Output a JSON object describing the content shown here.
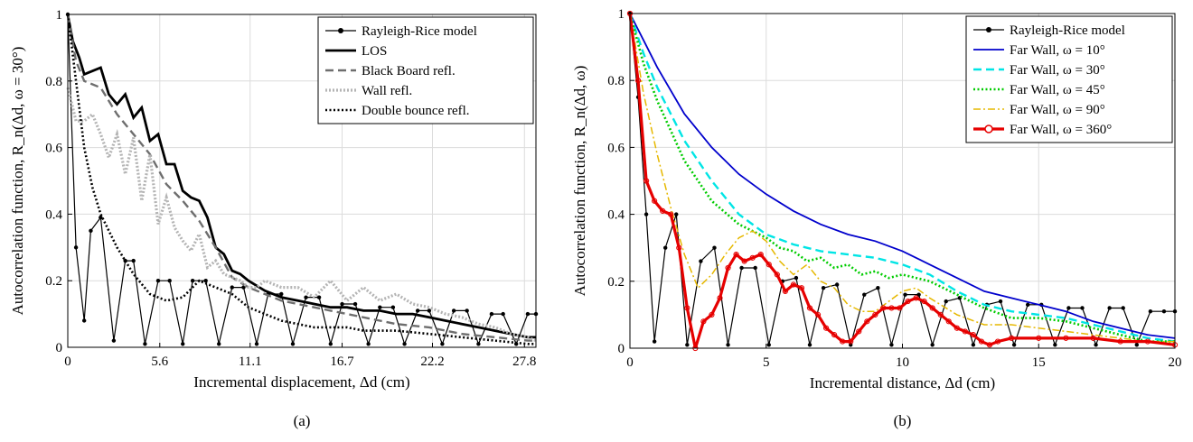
{
  "chart_data": [
    {
      "panel_label": "(a)",
      "type": "line",
      "xlabel": "Incremental displacement, Δd (cm)",
      "ylabel": "Autocorrelation function, R_n(Δd, ω = 30°)",
      "xlim": [
        0,
        28.5
      ],
      "ylim": [
        0,
        1
      ],
      "xticks": [
        0,
        5.6,
        11.1,
        16.7,
        22.2,
        27.8
      ],
      "xtick_labels": [
        "0",
        "5.6",
        "11.1",
        "16.7",
        "22.2",
        "27.8"
      ],
      "yticks": [
        0,
        0.2,
        0.4,
        0.6,
        0.8,
        1
      ],
      "ytick_labels": [
        "0",
        "0.2",
        "0.4",
        "0.6",
        "0.8",
        "1"
      ],
      "grid": true,
      "legend_position": "top-right",
      "series": [
        {
          "name": "Rayleigh-Rice model",
          "color": "#000000",
          "style": "solid-dot",
          "x": [
            0,
            0.5,
            1,
            1.4,
            2,
            2.8,
            3.5,
            4,
            4.7,
            5.5,
            6.2,
            7,
            7.6,
            8.4,
            9.2,
            10,
            10.7,
            11.5,
            12.2,
            13,
            13.7,
            14.5,
            15.3,
            16,
            16.7,
            17.5,
            18.3,
            19,
            19.8,
            20.5,
            21.3,
            22,
            22.8,
            23.5,
            24.3,
            25,
            25.8,
            26.5,
            27.3,
            28,
            28.5
          ],
          "y": [
            1,
            0.3,
            0.08,
            0.35,
            0.39,
            0.02,
            0.26,
            0.26,
            0.01,
            0.2,
            0.2,
            0.01,
            0.2,
            0.2,
            0.01,
            0.18,
            0.18,
            0.01,
            0.16,
            0.16,
            0.01,
            0.15,
            0.15,
            0.01,
            0.13,
            0.13,
            0.01,
            0.12,
            0.12,
            0.01,
            0.11,
            0.11,
            0.01,
            0.11,
            0.11,
            0.01,
            0.1,
            0.1,
            0.01,
            0.1,
            0.1
          ]
        },
        {
          "name": "LOS",
          "color": "#000000",
          "style": "thick-solid",
          "x": [
            0,
            0.3,
            0.7,
            1,
            1.5,
            2,
            2.5,
            3,
            3.5,
            4,
            4.5,
            5,
            5.5,
            6,
            6.5,
            7,
            7.5,
            8,
            8.5,
            9,
            9.5,
            10,
            10.5,
            11,
            12,
            13,
            14,
            15,
            16,
            17,
            18,
            19,
            20,
            21,
            22,
            23,
            24,
            25,
            26,
            27,
            28,
            28.5
          ],
          "y": [
            1,
            0.92,
            0.87,
            0.82,
            0.83,
            0.84,
            0.76,
            0.73,
            0.76,
            0.69,
            0.72,
            0.62,
            0.64,
            0.55,
            0.55,
            0.47,
            0.45,
            0.44,
            0.39,
            0.3,
            0.28,
            0.23,
            0.22,
            0.2,
            0.17,
            0.15,
            0.14,
            0.13,
            0.12,
            0.12,
            0.11,
            0.11,
            0.1,
            0.1,
            0.09,
            0.08,
            0.07,
            0.06,
            0.05,
            0.04,
            0.03,
            0.03
          ]
        },
        {
          "name": "Black Board refl.",
          "color": "#6e6e6e",
          "style": "dashed",
          "x": [
            0,
            0.5,
            1,
            2,
            3,
            4,
            5,
            6,
            7,
            8,
            9,
            10,
            11,
            12,
            13,
            14,
            15,
            16,
            17,
            18,
            19,
            20,
            22,
            24,
            26,
            28,
            28.5
          ],
          "y": [
            1,
            0.86,
            0.8,
            0.78,
            0.7,
            0.64,
            0.58,
            0.49,
            0.44,
            0.38,
            0.3,
            0.21,
            0.18,
            0.16,
            0.14,
            0.13,
            0.12,
            0.11,
            0.1,
            0.09,
            0.08,
            0.07,
            0.06,
            0.04,
            0.03,
            0.02,
            0.02
          ]
        },
        {
          "name": "Wall refl.",
          "color": "#b4b4b4",
          "style": "dotted-thick",
          "x": [
            0,
            0.5,
            1,
            1.5,
            2,
            2.5,
            3,
            3.5,
            4,
            4.5,
            5,
            5.5,
            6,
            6.5,
            7,
            7.5,
            8,
            8.5,
            9,
            9.5,
            10,
            10.5,
            11,
            11.5,
            12,
            13,
            14,
            15,
            16,
            17,
            18,
            19,
            20,
            21,
            22,
            23,
            24,
            25,
            26,
            27,
            28,
            28.5
          ],
          "y": [
            0.78,
            0.68,
            0.68,
            0.7,
            0.64,
            0.57,
            0.64,
            0.52,
            0.63,
            0.44,
            0.58,
            0.37,
            0.45,
            0.36,
            0.32,
            0.29,
            0.34,
            0.24,
            0.26,
            0.22,
            0.21,
            0.2,
            0.18,
            0.18,
            0.2,
            0.18,
            0.18,
            0.15,
            0.2,
            0.14,
            0.18,
            0.14,
            0.16,
            0.13,
            0.12,
            0.1,
            0.09,
            0.07,
            0.06,
            0.04,
            0.03,
            0.02
          ]
        },
        {
          "name": "Double bounce refl.",
          "color": "#000000",
          "style": "dotted",
          "x": [
            0,
            0.5,
            1,
            1.5,
            2,
            3,
            4,
            5,
            6,
            7,
            8,
            9,
            10,
            11,
            12,
            13,
            14,
            15,
            16,
            17,
            18,
            19,
            20,
            22,
            24,
            26,
            28,
            28.5
          ],
          "y": [
            1,
            0.8,
            0.6,
            0.48,
            0.4,
            0.3,
            0.22,
            0.16,
            0.14,
            0.15,
            0.2,
            0.18,
            0.16,
            0.12,
            0.1,
            0.08,
            0.07,
            0.06,
            0.06,
            0.06,
            0.05,
            0.05,
            0.05,
            0.04,
            0.03,
            0.02,
            0.01,
            0.01
          ]
        }
      ]
    },
    {
      "panel_label": "(b)",
      "type": "line",
      "xlabel": "Incremental distance, Δd (cm)",
      "ylabel": "Autocorrelation function, R_n(Δd, ω)",
      "xlim": [
        0,
        20
      ],
      "ylim": [
        0,
        1
      ],
      "xticks": [
        0,
        5,
        10,
        15,
        20
      ],
      "xtick_labels": [
        "0",
        "5",
        "10",
        "15",
        "20"
      ],
      "yticks": [
        0,
        0.2,
        0.4,
        0.6,
        0.8,
        1
      ],
      "ytick_labels": [
        "0",
        "0.2",
        "0.4",
        "0.6",
        "0.8",
        "1"
      ],
      "grid": true,
      "legend_position": "top-right",
      "series": [
        {
          "name": "Rayleigh-Rice model",
          "color": "#000000",
          "style": "solid-dot",
          "x": [
            0,
            0.3,
            0.6,
            0.9,
            1.3,
            1.7,
            2.1,
            2.6,
            3.1,
            3.6,
            4.1,
            4.6,
            5.1,
            5.6,
            6.1,
            6.6,
            7.1,
            7.6,
            8.1,
            8.6,
            9.1,
            9.6,
            10.1,
            10.6,
            11.1,
            11.6,
            12.1,
            12.6,
            13.1,
            13.6,
            14.1,
            14.6,
            15.1,
            15.6,
            16.1,
            16.6,
            17.1,
            17.6,
            18.1,
            18.6,
            19.1,
            19.6,
            20
          ],
          "y": [
            1,
            0.75,
            0.4,
            0.02,
            0.3,
            0.4,
            0.01,
            0.26,
            0.3,
            0.01,
            0.24,
            0.24,
            0.01,
            0.2,
            0.21,
            0.01,
            0.18,
            0.19,
            0.01,
            0.16,
            0.18,
            0.01,
            0.16,
            0.16,
            0.01,
            0.14,
            0.15,
            0.01,
            0.13,
            0.14,
            0.01,
            0.13,
            0.13,
            0.01,
            0.12,
            0.12,
            0.01,
            0.12,
            0.12,
            0.01,
            0.11,
            0.11,
            0.11
          ]
        },
        {
          "name": "Far Wall, ω = 10°",
          "color": "#0000cc",
          "style": "solid",
          "x": [
            0,
            0.5,
            1,
            2,
            3,
            4,
            5,
            6,
            7,
            8,
            9,
            10,
            11,
            12,
            13,
            14,
            15,
            16,
            17,
            18,
            19,
            20
          ],
          "y": [
            1,
            0.92,
            0.84,
            0.7,
            0.6,
            0.52,
            0.46,
            0.41,
            0.37,
            0.34,
            0.32,
            0.29,
            0.25,
            0.21,
            0.17,
            0.15,
            0.13,
            0.11,
            0.08,
            0.06,
            0.04,
            0.03
          ]
        },
        {
          "name": "Far Wall, ω = 30°",
          "color": "#00e5e5",
          "style": "dashed",
          "x": [
            0,
            0.5,
            1,
            2,
            3,
            4,
            5,
            6,
            7,
            8,
            9,
            10,
            11,
            12,
            13,
            14,
            15,
            16,
            17,
            18,
            19,
            20
          ],
          "y": [
            1,
            0.88,
            0.78,
            0.62,
            0.5,
            0.4,
            0.34,
            0.31,
            0.29,
            0.28,
            0.27,
            0.25,
            0.22,
            0.17,
            0.13,
            0.11,
            0.1,
            0.09,
            0.07,
            0.05,
            0.03,
            0.02
          ]
        },
        {
          "name": "Far Wall, ω = 45°",
          "color": "#00cc00",
          "style": "dotted",
          "x": [
            0,
            0.5,
            1,
            2,
            3,
            4,
            5,
            5.5,
            6,
            6.5,
            7,
            7.5,
            8,
            8.5,
            9,
            9.5,
            10,
            11,
            12,
            13,
            14,
            15,
            16,
            17,
            18,
            19,
            20
          ],
          "y": [
            1,
            0.85,
            0.74,
            0.56,
            0.44,
            0.37,
            0.33,
            0.3,
            0.29,
            0.26,
            0.27,
            0.24,
            0.25,
            0.22,
            0.23,
            0.21,
            0.22,
            0.2,
            0.16,
            0.12,
            0.09,
            0.09,
            0.08,
            0.06,
            0.04,
            0.02,
            0.02
          ]
        },
        {
          "name": "Far Wall, ω = 90°",
          "color": "#e6b800",
          "style": "dashdot",
          "x": [
            0,
            0.5,
            1,
            1.5,
            2,
            2.5,
            3,
            3.5,
            4,
            4.5,
            5,
            5.5,
            6,
            6.5,
            7,
            7.5,
            8,
            8.5,
            9,
            9.5,
            10,
            10.5,
            11,
            12,
            13,
            14,
            15,
            16,
            17,
            18,
            19,
            20
          ],
          "y": [
            1,
            0.76,
            0.58,
            0.42,
            0.28,
            0.18,
            0.22,
            0.28,
            0.33,
            0.35,
            0.32,
            0.26,
            0.22,
            0.25,
            0.2,
            0.18,
            0.13,
            0.11,
            0.11,
            0.14,
            0.17,
            0.18,
            0.15,
            0.1,
            0.07,
            0.07,
            0.06,
            0.05,
            0.04,
            0.03,
            0.02,
            0.02
          ]
        },
        {
          "name": "Far Wall, ω = 360°",
          "color": "#e60000",
          "style": "thick-circle",
          "x": [
            0,
            0.3,
            0.6,
            0.9,
            1.2,
            1.5,
            1.8,
            2.1,
            2.4,
            2.7,
            3,
            3.3,
            3.6,
            3.9,
            4.2,
            4.5,
            4.8,
            5.1,
            5.4,
            5.7,
            6,
            6.3,
            6.6,
            6.9,
            7.2,
            7.5,
            7.8,
            8.1,
            8.4,
            8.7,
            9,
            9.3,
            9.6,
            9.9,
            10.2,
            10.5,
            10.8,
            11.1,
            11.4,
            11.7,
            12,
            12.3,
            12.6,
            12.9,
            13.2,
            13.5,
            14,
            15,
            16,
            17,
            18,
            19,
            20
          ],
          "y": [
            1,
            0.8,
            0.5,
            0.44,
            0.41,
            0.4,
            0.3,
            0.12,
            0.0,
            0.08,
            0.1,
            0.15,
            0.24,
            0.28,
            0.26,
            0.27,
            0.28,
            0.25,
            0.22,
            0.17,
            0.19,
            0.18,
            0.12,
            0.1,
            0.06,
            0.04,
            0.02,
            0.02,
            0.05,
            0.08,
            0.1,
            0.12,
            0.12,
            0.12,
            0.14,
            0.15,
            0.14,
            0.12,
            0.1,
            0.08,
            0.06,
            0.05,
            0.04,
            0.02,
            0.01,
            0.02,
            0.03,
            0.03,
            0.03,
            0.03,
            0.02,
            0.02,
            0.01
          ]
        }
      ]
    }
  ]
}
